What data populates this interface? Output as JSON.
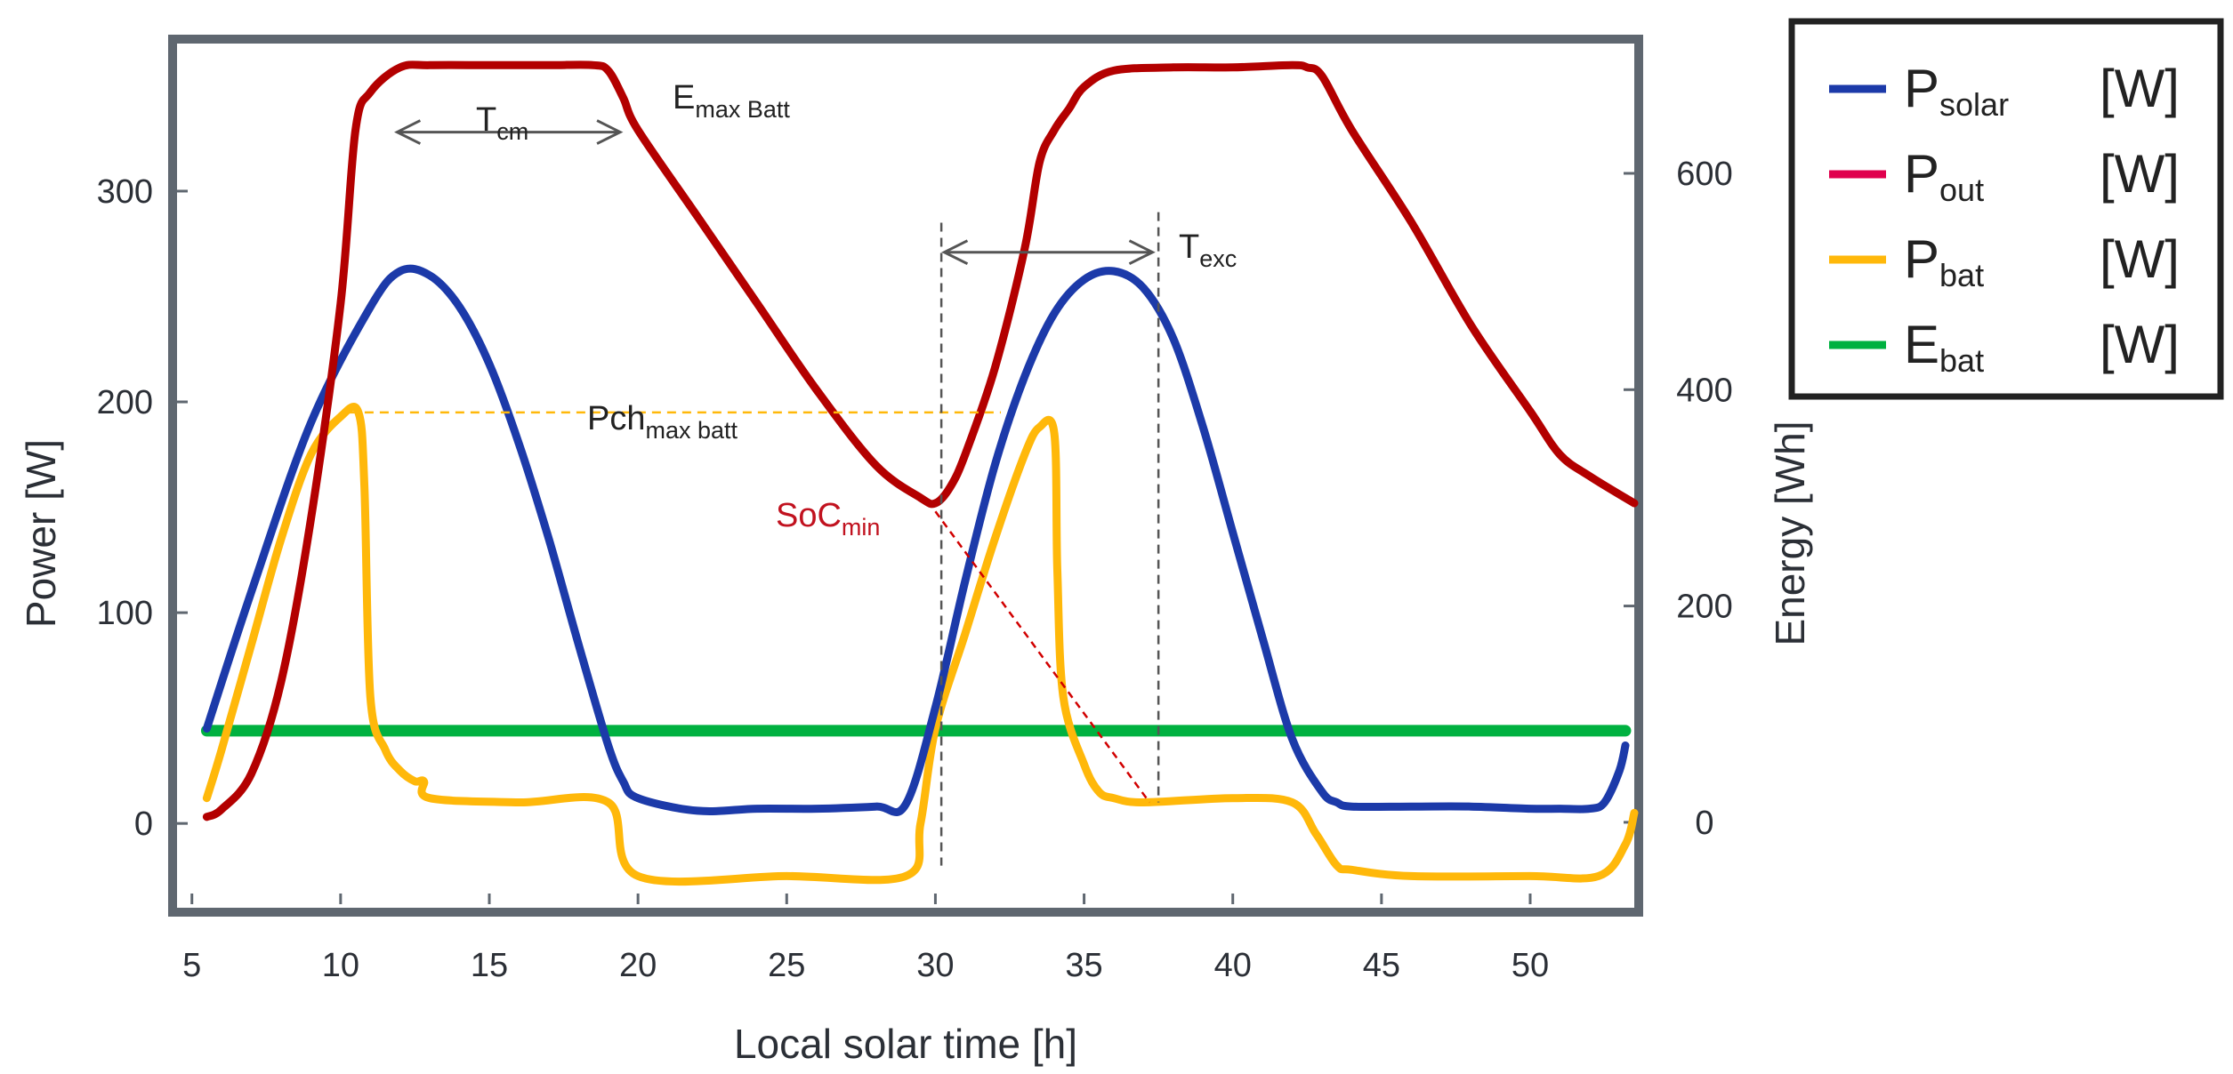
{
  "chart_data": {
    "type": "line",
    "title": "",
    "xlabel": "Local solar time [h]",
    "ylabel": "Power [W]",
    "y2label": "Energy [Wh]",
    "xlim": [
      4.5,
      53.5
    ],
    "ylim": [
      -40,
      370
    ],
    "y2lim": [
      -79,
      720
    ],
    "xticks": [
      5,
      10,
      15,
      20,
      25,
      30,
      35,
      40,
      45,
      50
    ],
    "yticks": [
      0,
      100,
      200,
      300
    ],
    "y2ticks": [
      0,
      200,
      400,
      600
    ],
    "grid": false,
    "legend_position": "outside-top-right",
    "series": [
      {
        "key": "psolar",
        "name": "P",
        "sub": "solar",
        "unit": "[W]",
        "color": "#1c3aa9",
        "axis": "left",
        "x": [
          5.5,
          7,
          9,
          11,
          12,
          13,
          14,
          15,
          16,
          17,
          18,
          19,
          19.5,
          20,
          22,
          24,
          26,
          28,
          29,
          30,
          31,
          32,
          33,
          34,
          35,
          36,
          37,
          38,
          39,
          40,
          41,
          42,
          43,
          43.5,
          44,
          46,
          48,
          50,
          51,
          52,
          52.5,
          53,
          53.2
        ],
        "y": [
          45,
          110,
          190,
          245,
          262,
          260,
          245,
          218,
          180,
          135,
          85,
          37,
          20,
          12,
          6,
          7,
          7,
          8,
          9,
          55,
          115,
          170,
          212,
          242,
          258,
          262,
          254,
          230,
          188,
          138,
          88,
          40,
          15,
          10,
          8,
          8,
          8,
          7,
          7,
          7,
          10,
          25,
          37
        ]
      },
      {
        "key": "pout",
        "name": "P",
        "sub": "out",
        "unit": "[W]",
        "color": "#e0004d",
        "axis": "left",
        "x": [],
        "y": []
      },
      {
        "key": "pbat",
        "name": "P",
        "sub": "bat",
        "unit": "[W]",
        "color": "#ffb80a",
        "axis": "left",
        "x": [
          5.5,
          6,
          7,
          8,
          9,
          10,
          10.6,
          10.8,
          11,
          11.5,
          12,
          12.5,
          12.8,
          13,
          16,
          19,
          20,
          25,
          29,
          29.5,
          30,
          31,
          32,
          33,
          33.5,
          34,
          34.1,
          34.3,
          35,
          35.5,
          36,
          37,
          40,
          42,
          42.8,
          43.5,
          44,
          46,
          50,
          52.3,
          53.2,
          53.5
        ],
        "y": [
          12,
          35,
          85,
          135,
          175,
          193,
          195,
          160,
          60,
          35,
          25,
          20,
          20,
          12,
          10,
          10,
          -25,
          -25,
          -25,
          0,
          45,
          90,
          135,
          175,
          188,
          185,
          120,
          60,
          28,
          15,
          12,
          10,
          12,
          10,
          -5,
          -20,
          -22,
          -25,
          -25,
          -25,
          -10,
          5
        ]
      },
      {
        "key": "ebat",
        "name": "E",
        "sub": "bat",
        "unit": "[W]",
        "color": "#00b140",
        "axis": "left",
        "x": [
          5.5,
          53.2
        ],
        "y": [
          44,
          44
        ]
      },
      {
        "key": "emax",
        "name": "",
        "sub": "",
        "unit": "",
        "color": "#b30000",
        "axis": "right",
        "x": [
          5.5,
          6,
          7,
          8,
          9,
          10,
          10.5,
          11,
          12,
          13,
          15,
          17,
          18.5,
          19,
          19.5,
          20,
          22,
          24,
          26,
          28,
          29.5,
          30,
          30.5,
          31,
          32,
          33,
          33.5,
          34,
          34.5,
          35,
          36,
          38,
          40,
          42,
          42.5,
          43,
          44,
          46,
          48,
          50,
          51,
          52,
          53.5
        ],
        "y": [
          5,
          12,
          45,
          130,
          280,
          480,
          640,
          675,
          698,
          700,
          700,
          700,
          700,
          695,
          670,
          640,
          560,
          480,
          400,
          330,
          300,
          295,
          310,
          340,
          420,
          530,
          610,
          640,
          660,
          680,
          695,
          698,
          698,
          700,
          698,
          690,
          640,
          555,
          460,
          380,
          340,
          320,
          295
        ]
      }
    ],
    "annotations": {
      "tcm": {
        "main": "T",
        "sub": "cm",
        "x_start": 11.9,
        "x_end": 19.4,
        "y": 328
      },
      "texc": {
        "main": "T",
        "sub": "exc",
        "x_start": 30.3,
        "x_end": 37.3,
        "y": 271
      },
      "emax": {
        "main": "E",
        "sub": "max Batt"
      },
      "pch": {
        "main": "Pch",
        "sub": "max batt",
        "level": 195
      },
      "socmin": {
        "main": "SoC",
        "sub": "min",
        "x0": 30.0,
        "y0": 148,
        "x1": 37.2,
        "y1": 10
      }
    }
  }
}
